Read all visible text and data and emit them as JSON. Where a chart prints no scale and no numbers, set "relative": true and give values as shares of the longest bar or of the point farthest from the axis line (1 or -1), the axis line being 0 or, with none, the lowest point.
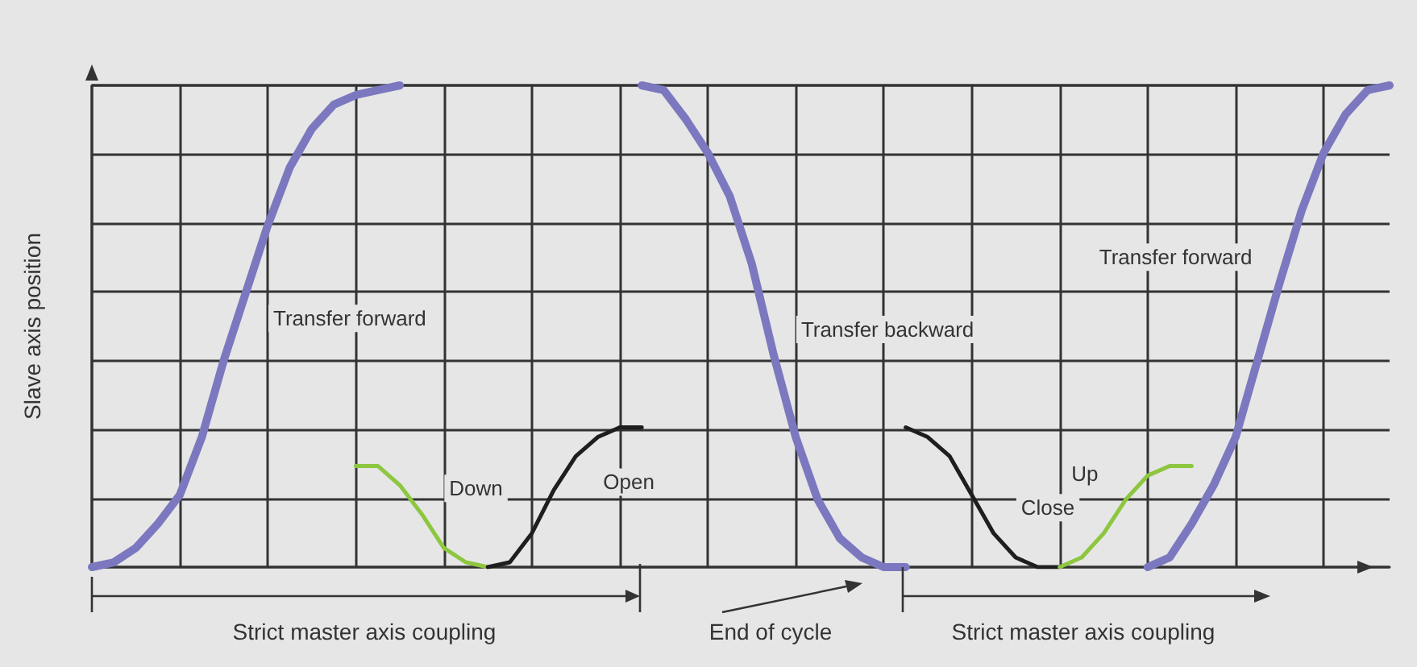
{
  "chart_data": {
    "type": "line",
    "relative": true,
    "ylabel": "Slave axis position",
    "grid": true,
    "legend": false,
    "categories": [
      null,
      null,
      null,
      null,
      null,
      null,
      null,
      null,
      null,
      null,
      null,
      null,
      null,
      null,
      null,
      null,
      null,
      null,
      null,
      null,
      null,
      null,
      null,
      null,
      null,
      null,
      null,
      null,
      null,
      null,
      null,
      null,
      null,
      null,
      null,
      null,
      null,
      null,
      null,
      null,
      null,
      null,
      null,
      null,
      null,
      null,
      null,
      null,
      null,
      null,
      null,
      null,
      null,
      null,
      null,
      null,
      null,
      null,
      null,
      null
    ],
    "series": [
      {
        "name": "Transfer forward",
        "color": "#7b78c0",
        "values": [
          0,
          0.01,
          0.04,
          0.09,
          0.15,
          0.27,
          0.43,
          0.57,
          0.71,
          0.83,
          0.91,
          0.96,
          0.98,
          0.99,
          1,
          null,
          null,
          null,
          null,
          null,
          null,
          null,
          null,
          null,
          null,
          null,
          null,
          null,
          null,
          null,
          null,
          null,
          null,
          null,
          null,
          null,
          null,
          null,
          null,
          null,
          null,
          null,
          null,
          null,
          null,
          null,
          null,
          null,
          null,
          null,
          null,
          null,
          null,
          null,
          null,
          null,
          null,
          null,
          null,
          null
        ]
      },
      {
        "name": "Down",
        "color": "#8dc63f",
        "values": [
          null,
          null,
          null,
          null,
          null,
          null,
          null,
          null,
          null,
          null,
          null,
          null,
          0.21,
          0.21,
          0.17,
          0.11,
          0.04,
          0.01,
          0,
          null,
          null,
          null,
          null,
          null,
          null,
          null,
          null,
          null,
          null,
          null,
          null,
          null,
          null,
          null,
          null,
          null,
          null,
          null,
          null,
          null,
          null,
          null,
          null,
          null,
          null,
          null,
          null,
          null,
          null,
          null,
          null,
          null,
          null,
          null,
          null,
          null,
          null,
          null,
          null,
          null
        ]
      },
      {
        "name": "Open",
        "color": "#1e1e1e",
        "values": [
          null,
          null,
          null,
          null,
          null,
          null,
          null,
          null,
          null,
          null,
          null,
          null,
          null,
          null,
          null,
          null,
          null,
          null,
          0,
          0.01,
          0.07,
          0.16,
          0.23,
          0.27,
          0.29,
          0.29,
          null,
          null,
          null,
          null,
          null,
          null,
          null,
          null,
          null,
          null,
          null,
          null,
          null,
          null,
          null,
          null,
          null,
          null,
          null,
          null,
          null,
          null,
          null,
          null,
          null,
          null,
          null,
          null,
          null,
          null,
          null,
          null,
          null,
          null
        ]
      },
      {
        "name": "Transfer backward",
        "color": "#7b78c0",
        "values": [
          null,
          null,
          null,
          null,
          null,
          null,
          null,
          null,
          null,
          null,
          null,
          null,
          null,
          null,
          null,
          null,
          null,
          null,
          null,
          null,
          null,
          null,
          null,
          null,
          null,
          1,
          0.99,
          0.93,
          0.86,
          0.77,
          0.63,
          0.44,
          0.27,
          0.14,
          0.06,
          0.02,
          0,
          0,
          null,
          null,
          null,
          null,
          null,
          null,
          null,
          null,
          null,
          null,
          null,
          null,
          null,
          null,
          null,
          null,
          null,
          null,
          null,
          null,
          null,
          null
        ]
      },
      {
        "name": "Close",
        "color": "#1e1e1e",
        "values": [
          null,
          null,
          null,
          null,
          null,
          null,
          null,
          null,
          null,
          null,
          null,
          null,
          null,
          null,
          null,
          null,
          null,
          null,
          null,
          null,
          null,
          null,
          null,
          null,
          null,
          null,
          null,
          null,
          null,
          null,
          null,
          null,
          null,
          null,
          null,
          null,
          null,
          0.29,
          0.27,
          0.23,
          0.15,
          0.07,
          0.02,
          0,
          0,
          null,
          null,
          null,
          null,
          null,
          null,
          null,
          null,
          null,
          null,
          null,
          null,
          null,
          null,
          null
        ]
      },
      {
        "name": "Up",
        "color": "#8dc63f",
        "values": [
          null,
          null,
          null,
          null,
          null,
          null,
          null,
          null,
          null,
          null,
          null,
          null,
          null,
          null,
          null,
          null,
          null,
          null,
          null,
          null,
          null,
          null,
          null,
          null,
          null,
          null,
          null,
          null,
          null,
          null,
          null,
          null,
          null,
          null,
          null,
          null,
          null,
          null,
          null,
          null,
          null,
          null,
          null,
          null,
          0,
          0.02,
          0.07,
          0.14,
          0.19,
          0.21,
          0.21,
          null,
          null,
          null,
          null,
          null,
          null,
          null,
          null,
          null
        ]
      },
      {
        "name": "Transfer forward",
        "color": "#7b78c0",
        "values": [
          null,
          null,
          null,
          null,
          null,
          null,
          null,
          null,
          null,
          null,
          null,
          null,
          null,
          null,
          null,
          null,
          null,
          null,
          null,
          null,
          null,
          null,
          null,
          null,
          null,
          null,
          null,
          null,
          null,
          null,
          null,
          null,
          null,
          null,
          null,
          null,
          null,
          null,
          null,
          null,
          null,
          null,
          null,
          null,
          null,
          null,
          null,
          null,
          0,
          0.02,
          0.09,
          0.17,
          0.27,
          0.43,
          0.59,
          0.74,
          0.86,
          0.94,
          0.99,
          1
        ]
      }
    ],
    "annotations": [
      "Strict master axis coupling",
      "End of cycle",
      "Strict master axis coupling"
    ]
  }
}
